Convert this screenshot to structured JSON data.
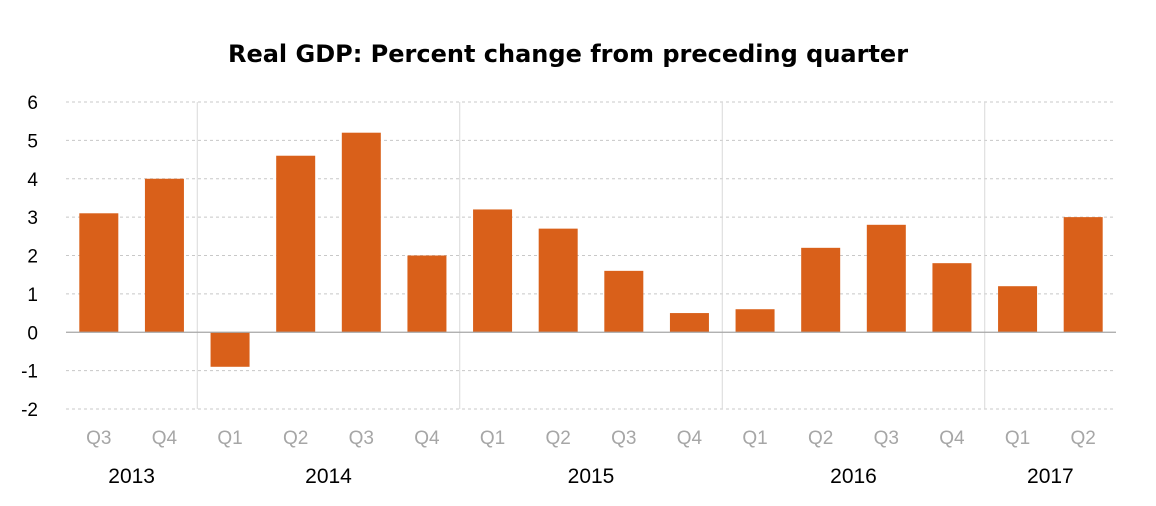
{
  "chart_data": {
    "type": "bar",
    "title": "Real GDP:  Percent change from preceding quarter",
    "xlabel": "",
    "ylabel": "",
    "ylim": [
      -2,
      6
    ],
    "yticks": [
      -2,
      -1,
      0,
      1,
      2,
      3,
      4,
      5,
      6
    ],
    "grid": true,
    "legend": "none",
    "categories": [
      "Q3",
      "Q4",
      "Q1",
      "Q2",
      "Q3",
      "Q4",
      "Q1",
      "Q2",
      "Q3",
      "Q4",
      "Q1",
      "Q2",
      "Q3",
      "Q4",
      "Q1",
      "Q2"
    ],
    "years": [
      {
        "label": "2013",
        "count": 2
      },
      {
        "label": "2014",
        "count": 4
      },
      {
        "label": "2015",
        "count": 4
      },
      {
        "label": "2016",
        "count": 4
      },
      {
        "label": "2017",
        "count": 2
      }
    ],
    "values": [
      3.1,
      4.0,
      -0.9,
      4.6,
      5.2,
      2.0,
      3.2,
      2.7,
      1.6,
      0.5,
      0.6,
      2.2,
      2.8,
      1.8,
      1.2,
      3.0
    ],
    "colors": {
      "bar": "#D9601A",
      "grid": "#C8C8C8",
      "axis": "#A6A6A6",
      "tick_label": "#000000",
      "quarter_label": "#A6A6A6",
      "year_label": "#000000"
    }
  }
}
